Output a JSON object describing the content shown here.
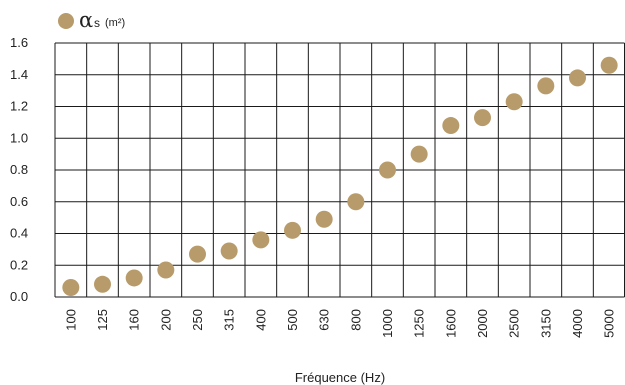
{
  "chart_data": {
    "type": "scatter",
    "legend": {
      "symbol": "α",
      "subscript": "s",
      "unit": "(m²)",
      "placement": "top-left"
    },
    "xlabel": "Fréquence (Hz)",
    "ylabel": "",
    "categories": [
      "100",
      "125",
      "160",
      "200",
      "250",
      "315",
      "400",
      "500",
      "630",
      "800",
      "1000",
      "1250",
      "1600",
      "2000",
      "2500",
      "3150",
      "4000",
      "5000"
    ],
    "values": [
      0.06,
      0.08,
      0.12,
      0.17,
      0.27,
      0.29,
      0.36,
      0.42,
      0.49,
      0.6,
      0.8,
      0.9,
      1.08,
      1.13,
      1.23,
      1.33,
      1.38,
      1.46
    ],
    "ylim": [
      0,
      1.6
    ],
    "yticks": [
      "0.0",
      "0.2",
      "0.4",
      "0.6",
      "0.8",
      "1.0",
      "1.2",
      "1.4",
      "1.6"
    ],
    "grid": true,
    "marker_color": "#b89b6a"
  }
}
